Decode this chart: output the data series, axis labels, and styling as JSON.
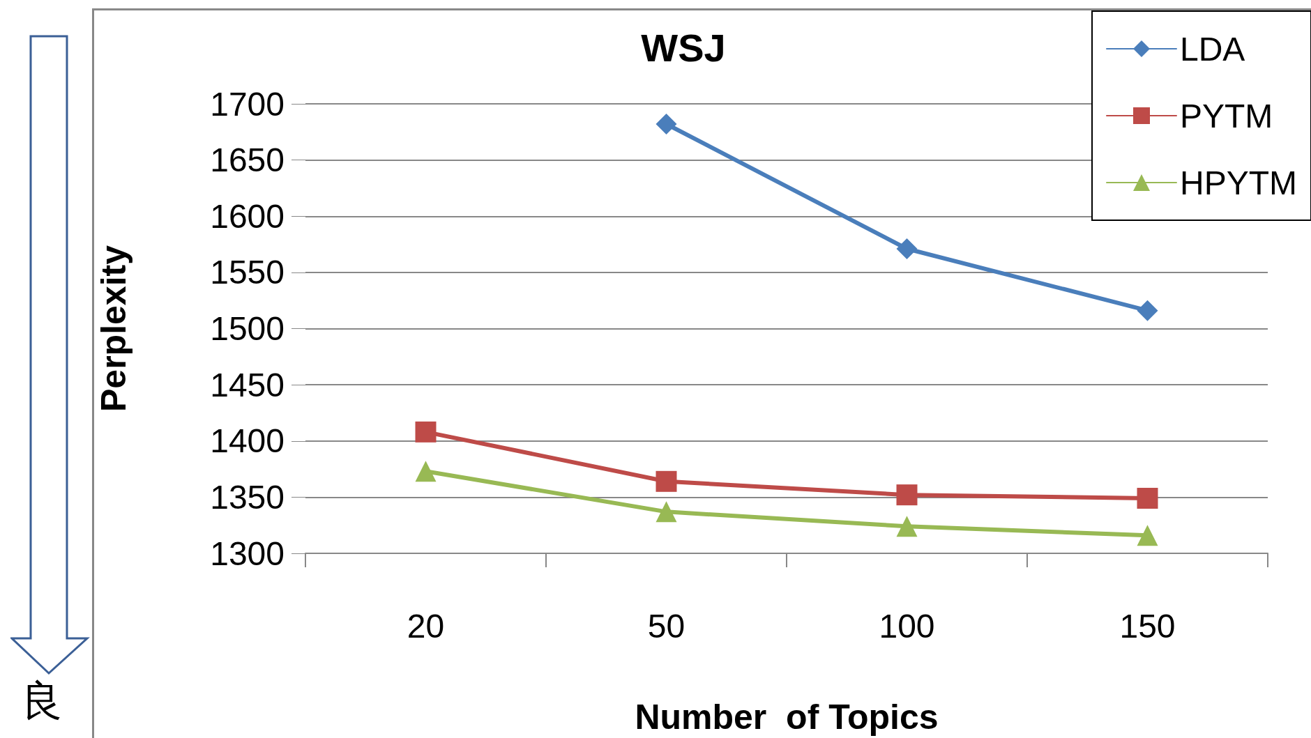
{
  "chart_data": {
    "type": "line",
    "title": "WSJ",
    "xlabel": "Number  of Topics",
    "ylabel": "Perplexity",
    "categories": [
      "20",
      "50",
      "100",
      "150"
    ],
    "series": [
      {
        "name": "LDA",
        "color": "#4a7ebb",
        "marker": "diamond",
        "values": [
          null,
          1682,
          1571,
          1516
        ]
      },
      {
        "name": "PYTM",
        "color": "#be4b48",
        "marker": "square",
        "values": [
          1408,
          1364,
          1352,
          1349
        ]
      },
      {
        "name": "HPYTM",
        "color": "#98b954",
        "marker": "triangle",
        "values": [
          1373,
          1337,
          1324,
          1316
        ]
      }
    ],
    "ylim": [
      1300,
      1700
    ],
    "yticks": [
      1300,
      1350,
      1400,
      1450,
      1500,
      1550,
      1600,
      1650,
      1700
    ],
    "grid": "y",
    "legend": "top right",
    "annotations": [
      "良"
    ]
  }
}
